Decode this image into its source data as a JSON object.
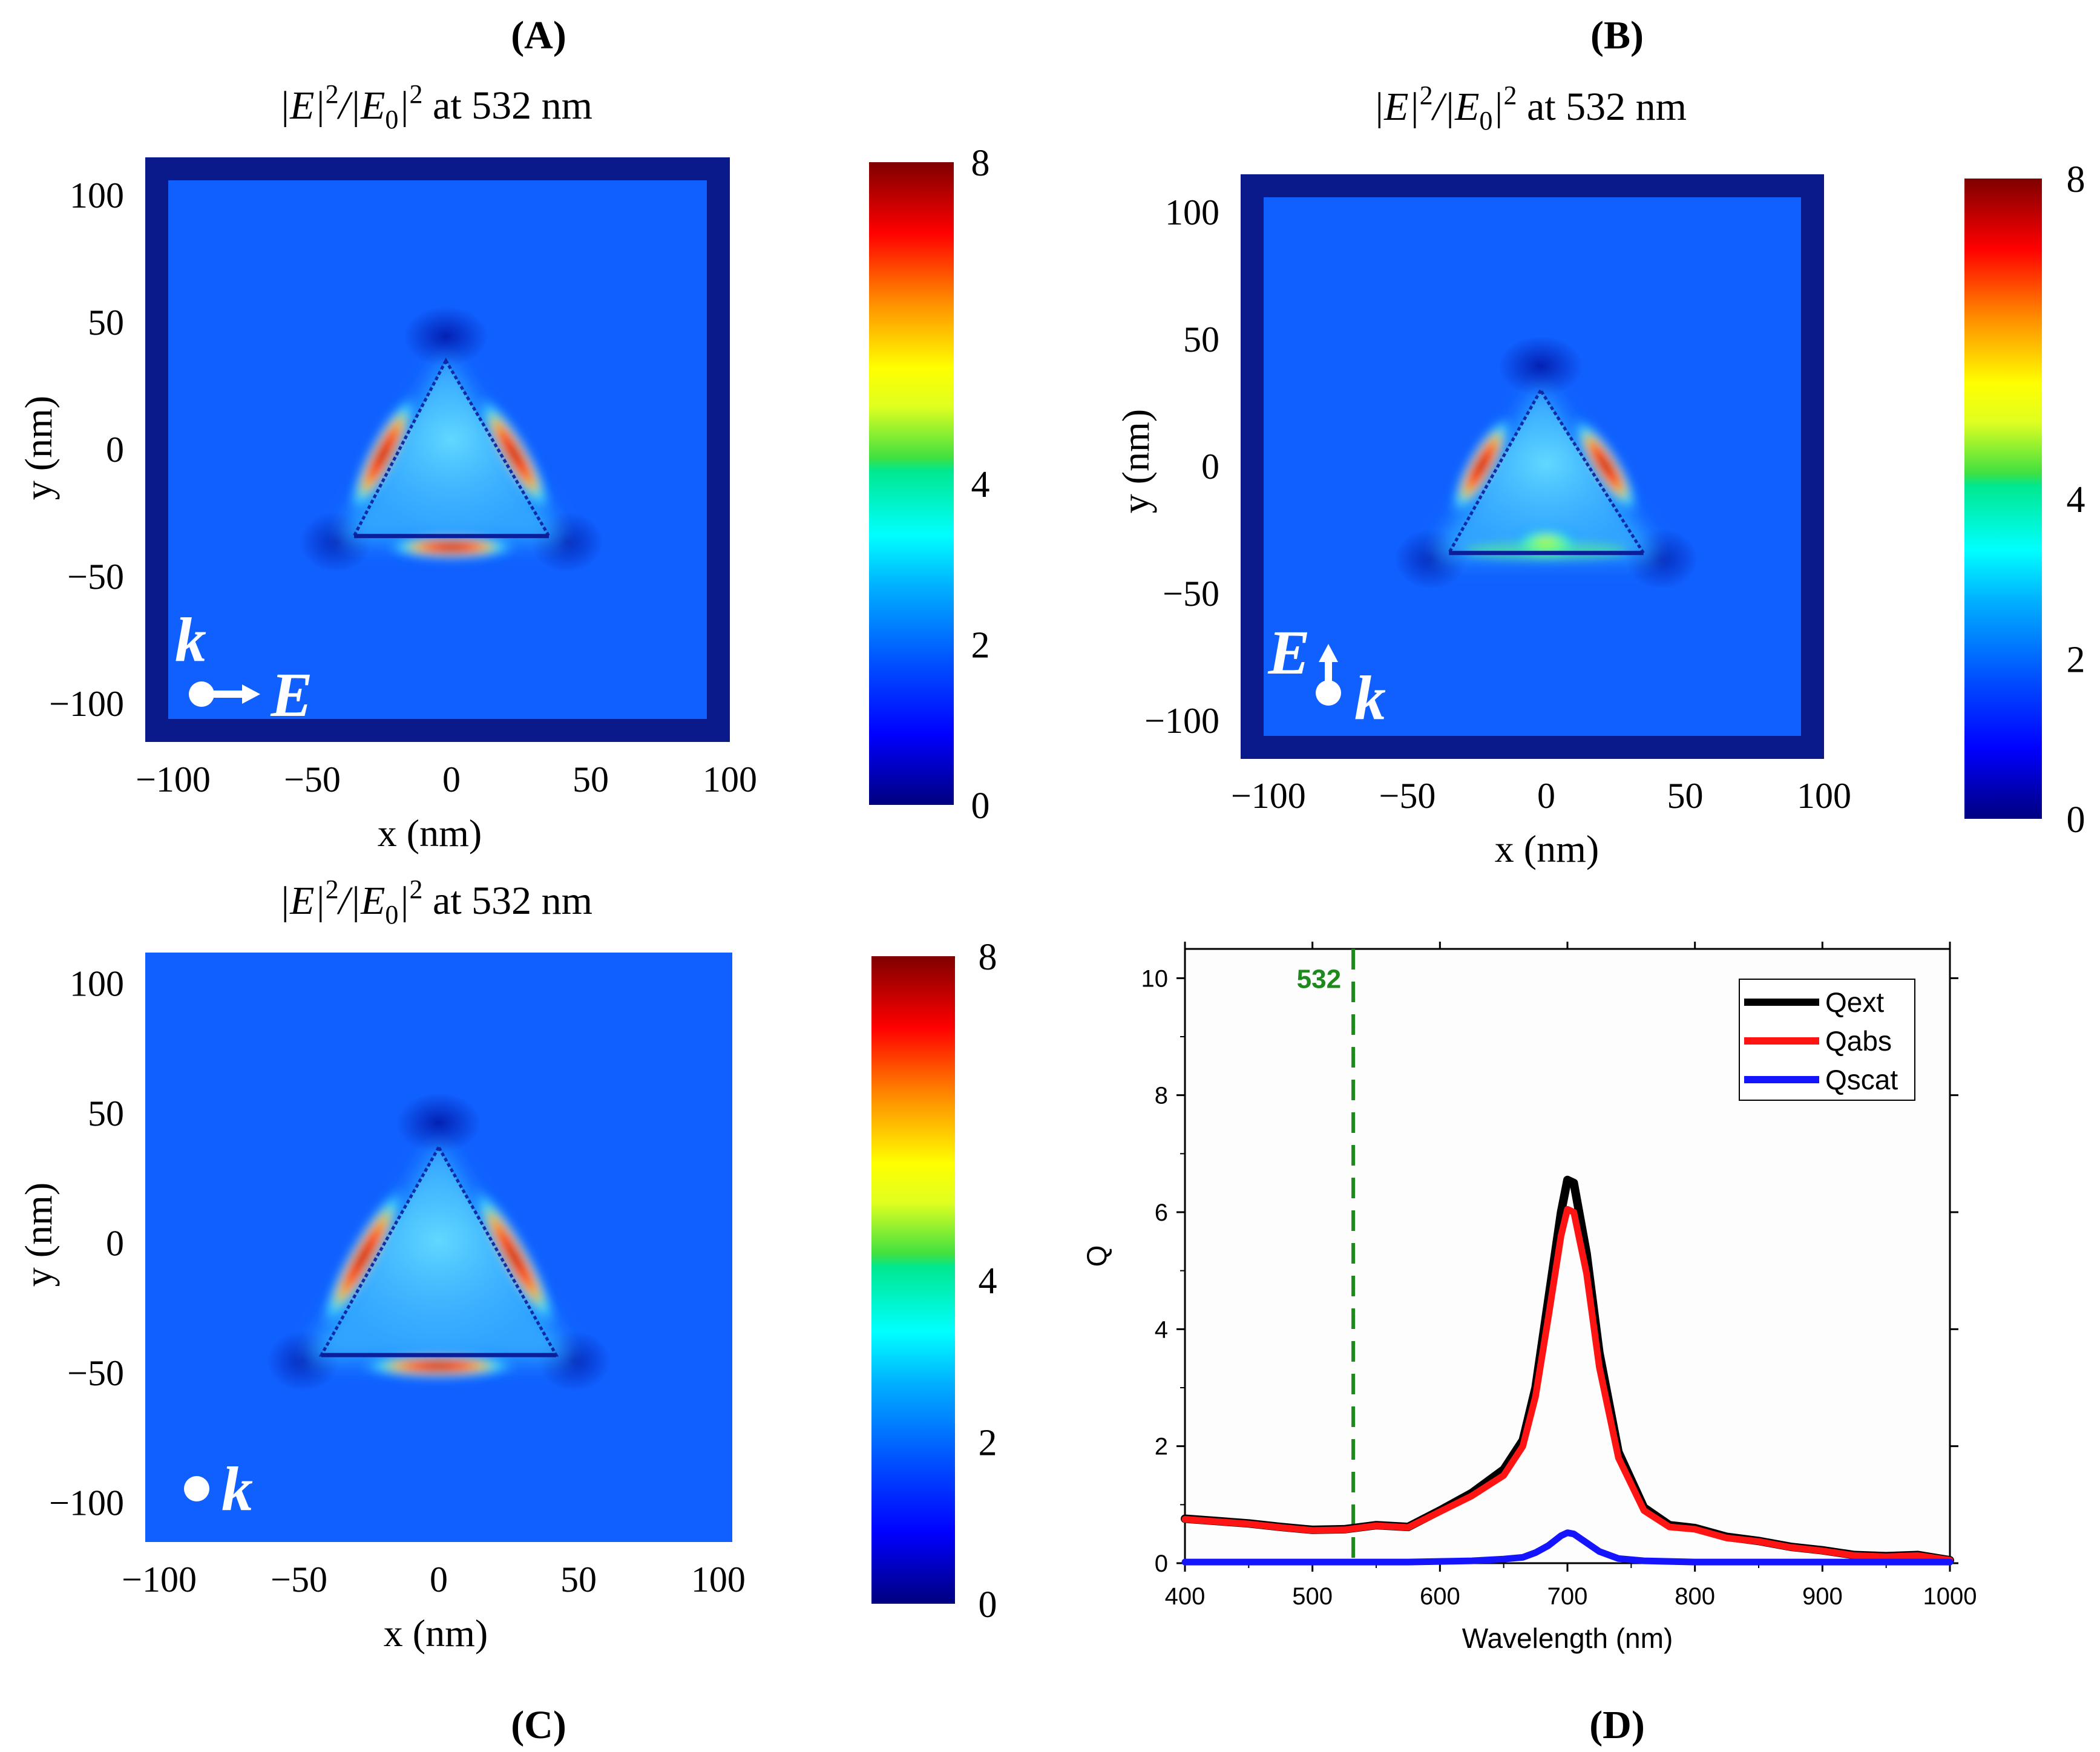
{
  "figure": {
    "panels": [
      {
        "id": "A",
        "label": "(A)"
      },
      {
        "id": "B",
        "label": "(B)"
      },
      {
        "id": "C",
        "label": "(C)"
      },
      {
        "id": "D",
        "label": "(D)"
      }
    ]
  },
  "chart_data": [
    {
      "panel": "A",
      "type": "heatmap",
      "title": "|E|²/|E₀|² at 532 nm",
      "title_parts": {
        "base": "|E|",
        "sq1": "2",
        "mid": "/|E",
        "sub": "0",
        "end": "|",
        "sq2": "2",
        "suffix": " at 532 nm"
      },
      "xlabel": "x (nm)",
      "ylabel": "y (nm)",
      "x_ticks": [
        -100,
        -50,
        0,
        50,
        100
      ],
      "y_ticks": [
        100,
        50,
        0,
        -50,
        -100
      ],
      "xlim": [
        -110,
        100
      ],
      "ylim": [
        -115,
        115
      ],
      "colorbar": {
        "min": 0,
        "max": 8,
        "ticks": [
          0,
          2,
          4,
          8
        ]
      },
      "triangle": {
        "apex": [
          -2,
          35
        ],
        "base_left": [
          -35,
          -34
        ],
        "base_right": [
          35,
          -34
        ]
      },
      "polarization": {
        "k": "k",
        "E": "E",
        "k_direction": "out-of-page",
        "E_direction": "+x"
      },
      "hotspots": "field enhancement along the two slanted edges and below the base"
    },
    {
      "panel": "B",
      "type": "heatmap",
      "title": "|E|²/|E₀|² at 532 nm",
      "title_parts": {
        "base": "|E|",
        "sq1": "2",
        "mid": "/|E",
        "sub": "0",
        "end": "|",
        "sq2": "2",
        "suffix": " at 532 nm"
      },
      "xlabel": "x (nm)",
      "ylabel": "y (nm)",
      "x_ticks": [
        -100,
        -50,
        0,
        50,
        100
      ],
      "y_ticks": [
        100,
        50,
        0,
        -50,
        -100
      ],
      "xlim": [
        -110,
        100
      ],
      "ylim": [
        -115,
        115
      ],
      "colorbar": {
        "min": 0,
        "max": 8,
        "ticks": [
          0,
          2,
          4,
          8
        ]
      },
      "triangle": {
        "apex": [
          -2,
          30
        ],
        "base_left": [
          -35,
          -34
        ],
        "base_right": [
          35,
          -34
        ]
      },
      "polarization": {
        "k": "k",
        "E": "E",
        "k_direction": "out-of-page",
        "E_direction": "+y"
      },
      "hotspots": "field enhancement along the upper slanted edges"
    },
    {
      "panel": "C",
      "type": "heatmap",
      "title": "|E|²/|E₀|² at 532 nm",
      "title_parts": {
        "base": "|E|",
        "sq1": "2",
        "mid": "/|E",
        "sub": "0",
        "end": "|",
        "sq2": "2",
        "suffix": " at 532 nm"
      },
      "xlabel": "x (nm)",
      "ylabel": "y (nm)",
      "x_ticks": [
        -100,
        -50,
        0,
        50,
        100
      ],
      "y_ticks": [
        100,
        50,
        0,
        -50,
        -100
      ],
      "xlim": [
        -105,
        105
      ],
      "ylim": [
        -115,
        112
      ],
      "colorbar": {
        "min": 0,
        "max": 8,
        "ticks": [
          0,
          2,
          4,
          8
        ]
      },
      "triangle": {
        "apex": [
          0,
          37
        ],
        "base_left": [
          -42,
          -43
        ],
        "base_right": [
          42,
          -43
        ]
      },
      "polarization": {
        "k": "k",
        "k_direction": "out-of-page"
      },
      "hotspots": "field enhancement along both slanted edges and below the base"
    },
    {
      "panel": "D",
      "type": "line",
      "xlabel": "Wavelength (nm)",
      "ylabel": "Q",
      "xlim": [
        400,
        1000
      ],
      "ylim": [
        0,
        10.5
      ],
      "x_ticks": [
        400,
        500,
        600,
        700,
        800,
        900,
        1000
      ],
      "y_ticks": [
        0,
        2,
        4,
        6,
        8,
        10
      ],
      "vline": {
        "x": 532,
        "label": "532",
        "color": "#1e8a1e",
        "style": "dashed"
      },
      "legend": {
        "position": "top-right",
        "entries": [
          "Qext",
          "Qabs",
          "Qscat"
        ]
      },
      "x": [
        400,
        425,
        450,
        475,
        500,
        525,
        550,
        575,
        600,
        625,
        650,
        665,
        675,
        685,
        695,
        700,
        705,
        715,
        725,
        740,
        760,
        780,
        800,
        825,
        850,
        875,
        900,
        925,
        950,
        975,
        1000
      ],
      "series": [
        {
          "name": "Qext",
          "color": "#000000",
          "values": [
            0.76,
            0.72,
            0.68,
            0.62,
            0.57,
            0.58,
            0.65,
            0.62,
            0.9,
            1.2,
            1.6,
            2.1,
            3.0,
            4.5,
            6.0,
            6.55,
            6.5,
            5.3,
            3.6,
            1.9,
            0.95,
            0.65,
            0.6,
            0.45,
            0.38,
            0.28,
            0.22,
            0.14,
            0.12,
            0.14,
            0.05
          ]
        },
        {
          "name": "Qabs",
          "color": "#ff1414",
          "values": [
            0.75,
            0.71,
            0.67,
            0.61,
            0.56,
            0.57,
            0.64,
            0.61,
            0.88,
            1.15,
            1.5,
            2.0,
            2.85,
            4.2,
            5.6,
            6.05,
            6.0,
            4.95,
            3.35,
            1.8,
            0.9,
            0.62,
            0.58,
            0.43,
            0.37,
            0.27,
            0.21,
            0.13,
            0.11,
            0.13,
            0.05
          ]
        },
        {
          "name": "Qscat",
          "color": "#1414ff",
          "values": [
            0.02,
            0.02,
            0.02,
            0.02,
            0.02,
            0.02,
            0.02,
            0.02,
            0.03,
            0.04,
            0.07,
            0.1,
            0.18,
            0.3,
            0.47,
            0.52,
            0.5,
            0.35,
            0.2,
            0.08,
            0.04,
            0.03,
            0.02,
            0.02,
            0.02,
            0.02,
            0.02,
            0.02,
            0.02,
            0.02,
            0.02
          ]
        }
      ]
    }
  ]
}
